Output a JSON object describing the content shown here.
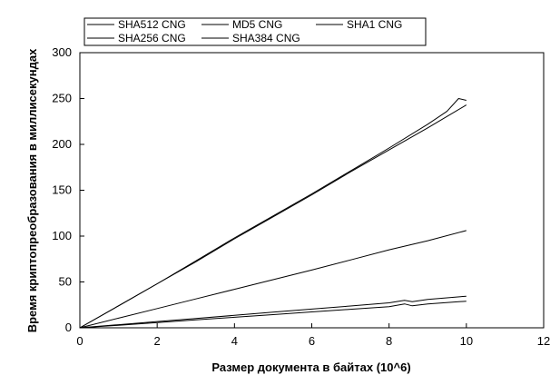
{
  "chart_data": {
    "type": "line",
    "title": "",
    "xlabel": "Размер документа в байтах (10^6)",
    "ylabel": "Время криптопреобразования в миллисекундах",
    "xlim": [
      0,
      12
    ],
    "ylim": [
      0,
      300
    ],
    "xticks": [
      0,
      2,
      4,
      6,
      8,
      10,
      12
    ],
    "yticks": [
      0,
      50,
      100,
      150,
      200,
      250,
      300
    ],
    "grid": false,
    "legend": {
      "placement": "top",
      "columns": 3
    },
    "series": [
      {
        "name": "SHA512 CNG",
        "x": [
          0,
          1,
          2,
          3,
          4,
          5,
          6,
          7,
          8,
          9,
          9.5,
          9.8,
          10
        ],
        "y": [
          0,
          24,
          48,
          73,
          98,
          122,
          146,
          171,
          196,
          222,
          236,
          250,
          248
        ]
      },
      {
        "name": "MD5 CNG",
        "x": [
          0,
          1,
          2,
          3,
          4,
          5,
          6,
          7,
          8,
          8.4,
          8.6,
          9,
          10
        ],
        "y": [
          0,
          2.8,
          5.7,
          8.6,
          11.5,
          14.4,
          17.3,
          20.2,
          23,
          26,
          24,
          26,
          29
        ]
      },
      {
        "name": "SHA1 CNG",
        "x": [
          0,
          1,
          2,
          3,
          4,
          5,
          6,
          7,
          8,
          9,
          10
        ],
        "y": [
          0,
          10.5,
          21,
          31.5,
          42,
          52.5,
          63,
          74,
          85,
          95,
          106
        ]
      },
      {
        "name": "SHA256 CNG",
        "x": [
          0,
          1,
          2,
          3,
          4,
          5,
          6,
          7,
          8,
          8.4,
          8.6,
          9,
          10
        ],
        "y": [
          0,
          3.4,
          6.8,
          10.2,
          13.6,
          17,
          20.4,
          23.8,
          27.2,
          30,
          28.5,
          31,
          34.5
        ]
      },
      {
        "name": "SHA384 CNG",
        "x": [
          0,
          1,
          2,
          3,
          4,
          5,
          6,
          7,
          8,
          9,
          10
        ],
        "y": [
          0,
          24,
          48,
          72,
          97,
          121,
          145,
          170,
          194,
          218,
          243
        ]
      }
    ]
  }
}
